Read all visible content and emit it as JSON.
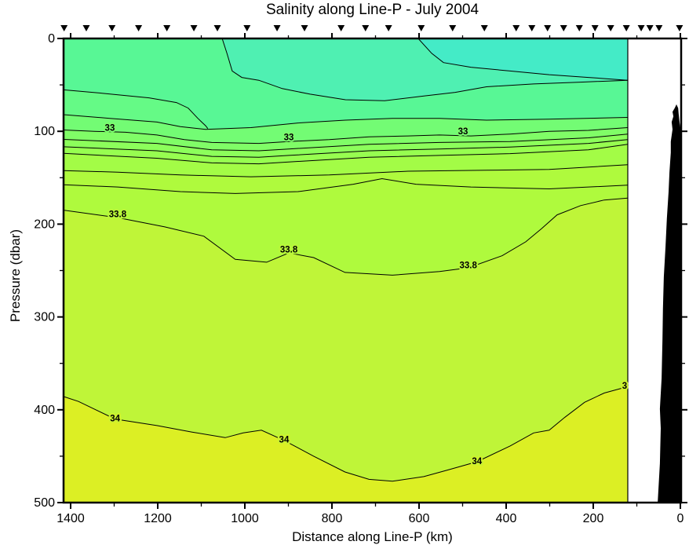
{
  "chart_data": {
    "type": "contour",
    "title": "Salinity along Line-P - July 2004",
    "xlabel": "Distance along Line-P (km)",
    "ylabel": "Pressure (dbar)",
    "x_axis": {
      "ticks": [
        1400,
        1200,
        1000,
        800,
        600,
        400,
        200,
        0
      ],
      "minor_ticks": [
        1300,
        1100,
        900,
        700,
        500,
        300,
        100
      ],
      "reversed": true,
      "left_edge_km": 1416,
      "data_right_edge_km": 121
    },
    "y_axis": {
      "ticks": [
        0,
        100,
        200,
        300,
        400,
        500
      ],
      "minor_ticks": [
        50,
        150,
        250,
        350,
        450
      ],
      "min": 0,
      "max": 500
    },
    "station_markers_km": [
      1415,
      1364,
      1305,
      1244,
      1179,
      1117,
      1063,
      995,
      926,
      863,
      779,
      723,
      670,
      595,
      523,
      450,
      377,
      341,
      305,
      268,
      232,
      196,
      160,
      124,
      90,
      70,
      49,
      2
    ],
    "palette": {
      "surface": "#58F795",
      "teal": "#4FF0B2",
      "cyan": "#44EBC7",
      "bands": [
        "#65FA86",
        "#73FC74",
        "#80FD67",
        "#8CFE5B",
        "#97FE50",
        "#A3FC46",
        "#AFFA3D",
        "#BFF538",
        "#DCEF24"
      ],
      "bathymetry": "#000000",
      "contour_line": "#000000"
    },
    "regions": {
      "teal_boundary": [
        [
          1052,
          0
        ],
        [
          1041,
          16
        ],
        [
          1029,
          35
        ],
        [
          1007,
          42
        ],
        [
          968,
          45
        ],
        [
          914,
          54
        ],
        [
          850,
          60
        ],
        [
          769,
          66
        ],
        [
          679,
          67
        ],
        [
          589,
          62
        ],
        [
          517,
          58
        ],
        [
          445,
          52
        ],
        [
          337,
          49
        ],
        [
          229,
          47
        ],
        [
          121,
          45
        ]
      ],
      "cyan_boundary": [
        [
          602,
          0
        ],
        [
          571,
          16
        ],
        [
          544,
          26
        ],
        [
          481,
          31
        ],
        [
          391,
          35
        ],
        [
          301,
          39
        ],
        [
          211,
          42
        ],
        [
          121,
          45
        ]
      ]
    },
    "fill_boundaries": [
      {
        "color": "#65FA86",
        "stroke_pts": 8,
        "pts": [
          [
            1447,
            54
          ],
          [
            1328,
            59
          ],
          [
            1220,
            64
          ],
          [
            1157,
            69
          ],
          [
            1130,
            75
          ],
          [
            1108,
            86
          ],
          [
            1090,
            94
          ],
          [
            1085,
            97
          ],
          [
            986,
            96
          ],
          [
            878,
            91
          ],
          [
            769,
            88
          ],
          [
            661,
            86
          ],
          [
            553,
            86
          ],
          [
            445,
            88
          ],
          [
            301,
            87
          ],
          [
            121,
            85
          ]
        ]
      },
      {
        "color": "#73FC74",
        "pts": [
          [
            1447,
            81
          ],
          [
            1310,
            86
          ],
          [
            1202,
            90
          ],
          [
            1148,
            95
          ],
          [
            1090,
            98
          ],
          [
            986,
            96
          ],
          [
            878,
            91
          ],
          [
            769,
            88
          ],
          [
            661,
            86
          ],
          [
            553,
            86
          ],
          [
            445,
            88
          ],
          [
            301,
            87
          ],
          [
            121,
            85
          ]
        ]
      },
      {
        "color": "#80FD67",
        "label_value": "33",
        "pts": [
          [
            1447,
            98
          ],
          [
            1346,
            100
          ],
          [
            1274,
            101
          ],
          [
            1202,
            104
          ],
          [
            1139,
            109
          ],
          [
            1076,
            112
          ],
          [
            968,
            113
          ],
          [
            899,
            111
          ],
          [
            806,
            109
          ],
          [
            715,
            106
          ],
          [
            625,
            105
          ],
          [
            553,
            104
          ],
          [
            481,
            105
          ],
          [
            391,
            103
          ],
          [
            301,
            100
          ],
          [
            211,
            99
          ],
          [
            121,
            96
          ]
        ]
      },
      {
        "color": "#8CFE5B",
        "pts": [
          [
            1447,
            108
          ],
          [
            1202,
            113
          ],
          [
            1076,
            120
          ],
          [
            968,
            121
          ],
          [
            899,
            119
          ],
          [
            715,
            114
          ],
          [
            553,
            112
          ],
          [
            391,
            111
          ],
          [
            211,
            107
          ],
          [
            121,
            103
          ]
        ]
      },
      {
        "color": "#97FE50",
        "pts": [
          [
            1447,
            116
          ],
          [
            1202,
            121
          ],
          [
            1076,
            127
          ],
          [
            968,
            128
          ],
          [
            899,
            126
          ],
          [
            715,
            121
          ],
          [
            553,
            119
          ],
          [
            391,
            117
          ],
          [
            211,
            113
          ],
          [
            121,
            109
          ]
        ]
      },
      {
        "color": "#A3FC46",
        "pts": [
          [
            1447,
            123
          ],
          [
            1202,
            129
          ],
          [
            1076,
            134
          ],
          [
            968,
            135
          ],
          [
            899,
            133
          ],
          [
            715,
            128
          ],
          [
            553,
            126
          ],
          [
            391,
            124
          ],
          [
            211,
            120
          ],
          [
            121,
            114
          ]
        ]
      },
      {
        "color": "#AFFA3D",
        "pts": [
          [
            1447,
            142
          ],
          [
            1292,
            144
          ],
          [
            1148,
            147
          ],
          [
            986,
            149
          ],
          [
            806,
            147
          ],
          [
            625,
            143
          ],
          [
            445,
            142
          ],
          [
            301,
            141
          ],
          [
            121,
            136
          ]
        ]
      },
      {
        "color": "#BFF538",
        "label_value": "33.8",
        "pts": [
          [
            1447,
            183
          ],
          [
            1292,
            193
          ],
          [
            1184,
            203
          ],
          [
            1094,
            213
          ],
          [
            1022,
            238
          ],
          [
            950,
            241
          ],
          [
            899,
            231
          ],
          [
            842,
            236
          ],
          [
            770,
            252
          ],
          [
            661,
            255
          ],
          [
            553,
            251
          ],
          [
            487,
            247
          ],
          [
            409,
            234
          ],
          [
            355,
            219
          ],
          [
            319,
            205
          ],
          [
            283,
            190
          ],
          [
            229,
            180
          ],
          [
            175,
            174
          ],
          [
            121,
            172
          ]
        ]
      },
      {
        "color": "#DCEF24",
        "label_value": "34",
        "pts": [
          [
            1447,
            381
          ],
          [
            1382,
            391
          ],
          [
            1298,
            410
          ],
          [
            1202,
            417
          ],
          [
            1121,
            424
          ],
          [
            1045,
            430
          ],
          [
            1004,
            425
          ],
          [
            962,
            422
          ],
          [
            910,
            433
          ],
          [
            842,
            450
          ],
          [
            770,
            467
          ],
          [
            715,
            475
          ],
          [
            661,
            477
          ],
          [
            589,
            472
          ],
          [
            535,
            465
          ],
          [
            467,
            456
          ],
          [
            391,
            439
          ],
          [
            337,
            425
          ],
          [
            301,
            422
          ],
          [
            265,
            408
          ],
          [
            220,
            392
          ],
          [
            175,
            382
          ],
          [
            128,
            376
          ],
          [
            121,
            376
          ]
        ]
      }
    ],
    "extra_contour_lines": [
      {
        "pts": [
          [
            1447,
            157
          ],
          [
            1292,
            160
          ],
          [
            1148,
            165
          ],
          [
            1022,
            167
          ],
          [
            878,
            165
          ],
          [
            751,
            157
          ],
          [
            685,
            151
          ],
          [
            607,
            157
          ],
          [
            481,
            160
          ],
          [
            301,
            162
          ],
          [
            121,
            158
          ]
        ]
      }
    ],
    "contour_labels": [
      {
        "text": "33",
        "km": 1310,
        "dbar": 96,
        "bg": "#7BFC6E"
      },
      {
        "text": "33",
        "km": 899,
        "dbar": 106,
        "bg": "#7BFC6E"
      },
      {
        "text": "33",
        "km": 499,
        "dbar": 100,
        "bg": "#7BFC6E"
      },
      {
        "text": "33.8",
        "km": 1292,
        "dbar": 189,
        "bg": "#B9F83A"
      },
      {
        "text": "33.8",
        "km": 899,
        "dbar": 227,
        "bg": "#B9F83A"
      },
      {
        "text": "33.8",
        "km": 487,
        "dbar": 244,
        "bg": "#B9F83A"
      },
      {
        "text": "34",
        "km": 1298,
        "dbar": 409,
        "bg": "#CDF22E"
      },
      {
        "text": "34",
        "km": 910,
        "dbar": 432,
        "bg": "#CDF22E"
      },
      {
        "text": "34",
        "km": 467,
        "dbar": 455,
        "bg": "#CDF22E"
      },
      {
        "text": "3",
        "km": 128,
        "dbar": 374,
        "bg": "#CDF22E"
      }
    ],
    "bathymetry_outline": [
      [
        52,
        500
      ],
      [
        47,
        458
      ],
      [
        45,
        420
      ],
      [
        47,
        399
      ],
      [
        43,
        366
      ],
      [
        41,
        324
      ],
      [
        40,
        291
      ],
      [
        38,
        257
      ],
      [
        34,
        224
      ],
      [
        31,
        194
      ],
      [
        27,
        165
      ],
      [
        25,
        144
      ],
      [
        22,
        123
      ],
      [
        22,
        111
      ],
      [
        18,
        98
      ],
      [
        20,
        90
      ],
      [
        16,
        84
      ],
      [
        18,
        79
      ],
      [
        13,
        75
      ],
      [
        9,
        71
      ],
      [
        5,
        75
      ],
      [
        4,
        81
      ],
      [
        2,
        90
      ],
      [
        0,
        96
      ],
      [
        0,
        500
      ]
    ]
  }
}
